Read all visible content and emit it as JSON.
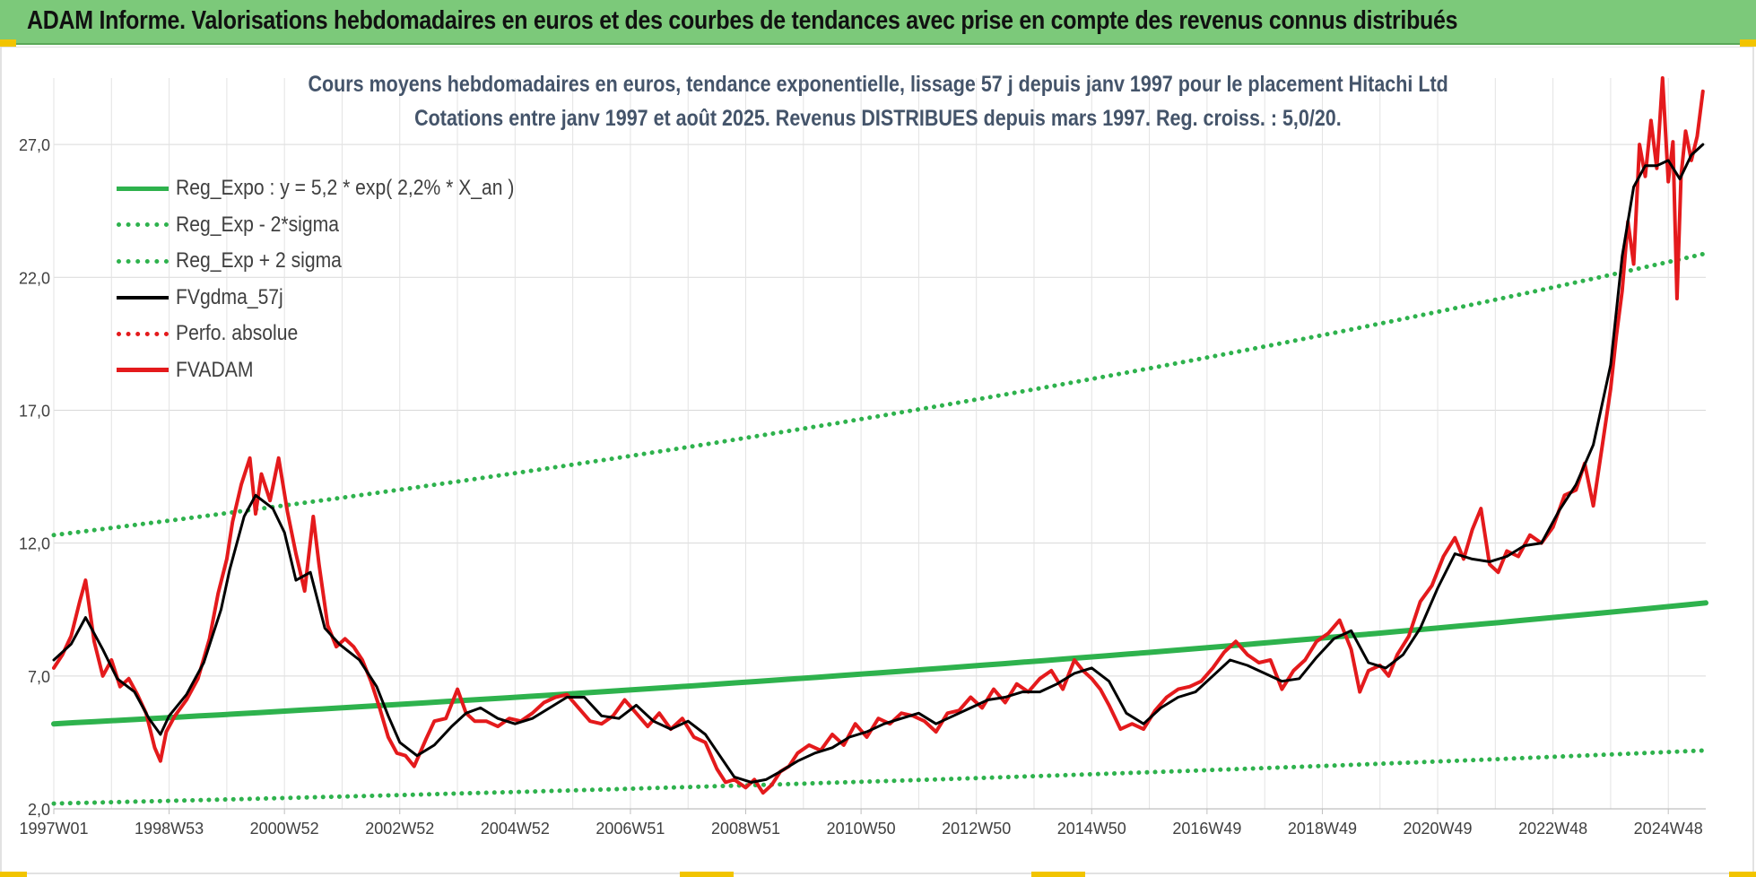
{
  "header": {
    "title": "ADAM Informe. Valorisations hebdomadaires en euros et des courbes de tendances avec prise en compte des revenus connus distribués"
  },
  "chart_data": {
    "type": "line",
    "title": "Cours moyens hebdomadaires en euros, tendance exponentielle, lissage 57 j depuis janv 1997  pour le placement Hitachi Ltd",
    "subtitle": "Cotations entre janv 1997 et août 2025.  Revenus DISTRIBUES depuis mars 1997. Reg. croiss. : 5,0/20.",
    "xlabel": "",
    "ylabel": "",
    "x_range": [
      1997.0,
      2025.65
    ],
    "ylim": [
      2.0,
      29.5
    ],
    "y_ticks": [
      "2,0",
      "7,0",
      "12,0",
      "17,0",
      "22,0",
      "27,0"
    ],
    "y_tick_values": [
      2.0,
      7.0,
      12.0,
      17.0,
      22.0,
      27.0
    ],
    "x_ticks": [
      "1997W01",
      "1998W53",
      "2000W52",
      "2002W52",
      "2004W52",
      "2006W51",
      "2008W51",
      "2010W50",
      "2012W50",
      "2014W50",
      "2016W49",
      "2018W49",
      "2020W49",
      "2022W48",
      "2024W48"
    ],
    "x_tick_values": [
      1997.0,
      1999.0,
      2001.0,
      2003.0,
      2005.0,
      2007.0,
      2009.0,
      2011.0,
      2013.0,
      2015.0,
      2017.0,
      2019.0,
      2021.0,
      2023.0,
      2025.0
    ],
    "grid": true,
    "legend_position": "top-left",
    "series": [
      {
        "name": "Reg_Expo : y = 5,2 * exp( 2,2% *  X_an )",
        "style": "solid",
        "color": "#2eb24d",
        "x": [
          1997.0,
          2025.65
        ],
        "values": [
          5.2,
          9.75
        ]
      },
      {
        "name": "Reg_Exp - 2*sigma",
        "style": "dotted",
        "color": "#2eb24d",
        "x": [
          1997.0,
          2025.65
        ],
        "values": [
          2.2,
          4.2
        ]
      },
      {
        "name": "Reg_Exp + 2 sigma",
        "style": "dotted",
        "color": "#2eb24d",
        "x": [
          1997.0,
          2025.65
        ],
        "values": [
          12.3,
          22.9
        ]
      },
      {
        "name": "FVgdma_57j",
        "style": "solid",
        "color": "#000000",
        "x": [
          1997.0,
          1997.3,
          1997.55,
          1997.85,
          1998.1,
          1998.4,
          1998.65,
          1998.85,
          1999.0,
          1999.3,
          1999.6,
          1999.9,
          2000.05,
          2000.3,
          2000.5,
          2000.8,
          2001.0,
          2001.2,
          2001.45,
          2001.7,
          2001.95,
          2002.3,
          2002.6,
          2002.8,
          2003.0,
          2003.3,
          2003.6,
          2003.9,
          2004.15,
          2004.4,
          2004.7,
          2005.0,
          2005.3,
          2005.6,
          2005.9,
          2006.2,
          2006.5,
          2006.8,
          2007.1,
          2007.4,
          2007.7,
          2008.0,
          2008.3,
          2008.55,
          2008.8,
          2009.1,
          2009.35,
          2009.6,
          2009.9,
          2010.2,
          2010.5,
          2010.8,
          2011.1,
          2011.4,
          2011.7,
          2012.0,
          2012.3,
          2012.6,
          2012.9,
          2013.2,
          2013.5,
          2013.8,
          2014.1,
          2014.4,
          2014.7,
          2015.0,
          2015.3,
          2015.6,
          2015.9,
          2016.2,
          2016.5,
          2016.8,
          2017.1,
          2017.4,
          2017.7,
          2018.0,
          2018.3,
          2018.6,
          2018.9,
          2019.2,
          2019.5,
          2019.8,
          2020.1,
          2020.4,
          2020.7,
          2021.0,
          2021.3,
          2021.6,
          2021.9,
          2022.2,
          2022.5,
          2022.8,
          2023.1,
          2023.4,
          2023.7,
          2024.0,
          2024.2,
          2024.4,
          2024.6,
          2024.8,
          2025.0,
          2025.2,
          2025.4,
          2025.6
        ],
        "values": [
          7.6,
          8.2,
          9.2,
          8.0,
          6.9,
          6.4,
          5.4,
          4.8,
          5.5,
          6.3,
          7.5,
          9.5,
          11.0,
          13.0,
          13.8,
          13.3,
          12.4,
          10.6,
          10.9,
          8.8,
          8.2,
          7.6,
          6.6,
          5.5,
          4.5,
          4.0,
          4.4,
          5.1,
          5.6,
          5.8,
          5.4,
          5.2,
          5.4,
          5.8,
          6.2,
          6.2,
          5.5,
          5.4,
          5.9,
          5.3,
          5.0,
          5.3,
          4.8,
          4.0,
          3.2,
          3.0,
          3.1,
          3.4,
          3.8,
          4.1,
          4.3,
          4.7,
          4.9,
          5.2,
          5.4,
          5.6,
          5.2,
          5.5,
          5.8,
          6.1,
          6.2,
          6.4,
          6.4,
          6.7,
          7.1,
          7.3,
          6.8,
          5.6,
          5.2,
          5.8,
          6.2,
          6.4,
          7.0,
          7.6,
          7.4,
          7.1,
          6.8,
          6.9,
          7.7,
          8.4,
          8.7,
          7.5,
          7.3,
          7.8,
          8.8,
          10.3,
          11.6,
          11.4,
          11.3,
          11.5,
          11.9,
          12.0,
          13.2,
          14.2,
          15.7,
          18.7,
          22.8,
          25.4,
          26.2,
          26.2,
          26.4,
          25.7,
          26.6,
          27.0
        ]
      },
      {
        "name": "Perfo. absolue",
        "style": "dotted",
        "color": "#e41a1c",
        "x": [],
        "values": []
      },
      {
        "name": "FVADAM",
        "style": "solid",
        "color": "#e41a1c",
        "x": [
          1997.0,
          1997.15,
          1997.3,
          1997.45,
          1997.55,
          1997.7,
          1997.85,
          1998.0,
          1998.15,
          1998.3,
          1998.45,
          1998.6,
          1998.75,
          1998.85,
          1998.95,
          1999.1,
          1999.3,
          1999.5,
          1999.7,
          1999.85,
          2000.0,
          2000.1,
          2000.25,
          2000.4,
          2000.5,
          2000.6,
          2000.75,
          2000.9,
          2001.05,
          2001.2,
          2001.35,
          2001.5,
          2001.6,
          2001.75,
          2001.9,
          2002.05,
          2002.2,
          2002.35,
          2002.5,
          2002.65,
          2002.8,
          2002.95,
          2003.1,
          2003.25,
          2003.45,
          2003.6,
          2003.8,
          2004.0,
          2004.15,
          2004.3,
          2004.5,
          2004.7,
          2004.9,
          2005.1,
          2005.3,
          2005.5,
          2005.7,
          2005.9,
          2006.1,
          2006.3,
          2006.5,
          2006.7,
          2006.9,
          2007.1,
          2007.3,
          2007.5,
          2007.7,
          2007.9,
          2008.1,
          2008.3,
          2008.5,
          2008.65,
          2008.8,
          2009.0,
          2009.15,
          2009.3,
          2009.45,
          2009.6,
          2009.75,
          2009.9,
          2010.1,
          2010.3,
          2010.5,
          2010.7,
          2010.9,
          2011.1,
          2011.3,
          2011.5,
          2011.7,
          2011.9,
          2012.1,
          2012.3,
          2012.5,
          2012.7,
          2012.9,
          2013.1,
          2013.3,
          2013.5,
          2013.7,
          2013.9,
          2014.1,
          2014.3,
          2014.5,
          2014.7,
          2014.85,
          2015.0,
          2015.15,
          2015.3,
          2015.5,
          2015.7,
          2015.9,
          2016.1,
          2016.3,
          2016.5,
          2016.7,
          2016.9,
          2017.1,
          2017.3,
          2017.5,
          2017.7,
          2017.9,
          2018.1,
          2018.3,
          2018.5,
          2018.7,
          2018.9,
          2019.1,
          2019.3,
          2019.5,
          2019.65,
          2019.8,
          2020.0,
          2020.15,
          2020.3,
          2020.5,
          2020.7,
          2020.9,
          2021.1,
          2021.3,
          2021.45,
          2021.6,
          2021.75,
          2021.9,
          2022.05,
          2022.2,
          2022.4,
          2022.6,
          2022.8,
          2023.0,
          2023.2,
          2023.4,
          2023.55,
          2023.7,
          2023.85,
          2024.0,
          2024.1,
          2024.2,
          2024.3,
          2024.4,
          2024.5,
          2024.6,
          2024.7,
          2024.8,
          2024.9,
          2025.0,
          2025.08,
          2025.15,
          2025.22,
          2025.3,
          2025.4,
          2025.5,
          2025.6
        ],
        "values": [
          7.3,
          7.8,
          8.5,
          9.8,
          10.6,
          8.3,
          7.0,
          7.6,
          6.6,
          6.9,
          6.3,
          5.6,
          4.3,
          3.8,
          4.9,
          5.5,
          6.1,
          6.9,
          8.4,
          10.1,
          11.4,
          12.8,
          14.2,
          15.2,
          13.1,
          14.6,
          13.6,
          15.2,
          13.2,
          11.6,
          10.2,
          13.0,
          11.2,
          8.9,
          8.1,
          8.4,
          8.1,
          7.6,
          6.8,
          5.8,
          4.7,
          4.1,
          4.0,
          3.6,
          4.6,
          5.3,
          5.4,
          6.5,
          5.6,
          5.3,
          5.3,
          5.1,
          5.4,
          5.3,
          5.6,
          6.0,
          6.2,
          6.3,
          5.8,
          5.3,
          5.2,
          5.5,
          6.1,
          5.6,
          5.1,
          5.6,
          5.0,
          5.4,
          4.7,
          4.5,
          3.5,
          3.0,
          3.1,
          2.8,
          3.1,
          2.6,
          2.9,
          3.4,
          3.6,
          4.1,
          4.4,
          4.2,
          4.8,
          4.4,
          5.2,
          4.7,
          5.4,
          5.2,
          5.6,
          5.5,
          5.3,
          4.9,
          5.6,
          5.7,
          6.2,
          5.8,
          6.5,
          6.0,
          6.7,
          6.4,
          6.9,
          7.2,
          6.5,
          7.6,
          7.2,
          6.9,
          6.5,
          5.9,
          5.0,
          5.2,
          5.0,
          5.7,
          6.2,
          6.5,
          6.6,
          6.8,
          7.3,
          7.9,
          8.3,
          7.8,
          7.5,
          7.6,
          6.5,
          7.2,
          7.6,
          8.3,
          8.6,
          9.1,
          8.0,
          6.4,
          7.2,
          7.4,
          7.0,
          7.8,
          8.5,
          9.8,
          10.4,
          11.5,
          12.2,
          11.4,
          12.5,
          13.3,
          11.2,
          10.9,
          11.7,
          11.5,
          12.3,
          12.0,
          12.6,
          13.8,
          14.0,
          15.0,
          13.4,
          15.6,
          17.8,
          19.8,
          21.5,
          24.1,
          22.5,
          27.0,
          25.8,
          27.9,
          26.1,
          29.5,
          25.6,
          27.1,
          21.2,
          25.8,
          27.5,
          26.4,
          27.3,
          29.0
        ]
      }
    ]
  }
}
